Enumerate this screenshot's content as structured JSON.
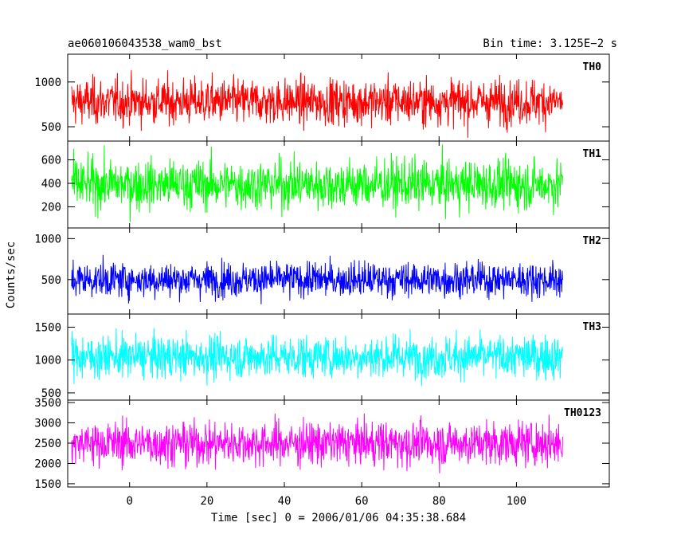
{
  "chart_data": {
    "type": "line",
    "title_left": "ae060106043538_wam0_bst",
    "title_right": "Bin time: 3.125E−2 s",
    "xlabel": "Time [sec] 0 = 2006/01/06 04:35:38.684",
    "ylabel": "Counts/sec",
    "xlim": [
      -16,
      124
    ],
    "x_ticks": [
      0,
      20,
      40,
      60,
      80,
      100
    ],
    "x_tick_labels": [
      "0",
      "20",
      "40",
      "60",
      "80",
      "100"
    ],
    "data_x_range": [
      -15,
      112
    ],
    "grid": false,
    "legend": "none",
    "panels": [
      {
        "label": "TH0",
        "color": "#ff0000",
        "ylim": [
          340,
          1310
        ],
        "y_ticks": [
          500,
          1000
        ],
        "y_tick_labels": [
          "500",
          "1000"
        ],
        "mean": 780,
        "spread": 180,
        "min": 340,
        "max": 1310
      },
      {
        "label": "TH1",
        "color": "#00ff00",
        "ylim": [
          20,
          760
        ],
        "y_ticks": [
          200,
          400,
          600
        ],
        "y_tick_labels": [
          "200",
          "400",
          "600"
        ],
        "mean": 390,
        "spread": 150,
        "min": 20,
        "max": 760
      },
      {
        "label": "TH2",
        "color": "#0000ff",
        "ylim": [
          80,
          1130
        ],
        "y_ticks": [
          500,
          1000
        ],
        "y_tick_labels": [
          "500",
          "1000"
        ],
        "mean": 500,
        "spread": 150,
        "min": 80,
        "max": 1130
      },
      {
        "label": "TH3",
        "color": "#00ffff",
        "ylim": [
          390,
          1700
        ],
        "y_ticks": [
          500,
          1000,
          1500
        ],
        "y_tick_labels": [
          "500",
          "1000",
          "1500"
        ],
        "mean": 1050,
        "spread": 230,
        "min": 390,
        "max": 1700
      },
      {
        "label": "TH0123",
        "color": "#ff00ff",
        "ylim": [
          1420,
          3560
        ],
        "y_ticks": [
          1500,
          2000,
          2500,
          3000,
          3500
        ],
        "y_tick_labels": [
          "1500",
          "2000",
          "2500",
          "3000",
          "3500"
        ],
        "mean": 2500,
        "spread": 380,
        "min": 1420,
        "max": 3560
      }
    ]
  }
}
